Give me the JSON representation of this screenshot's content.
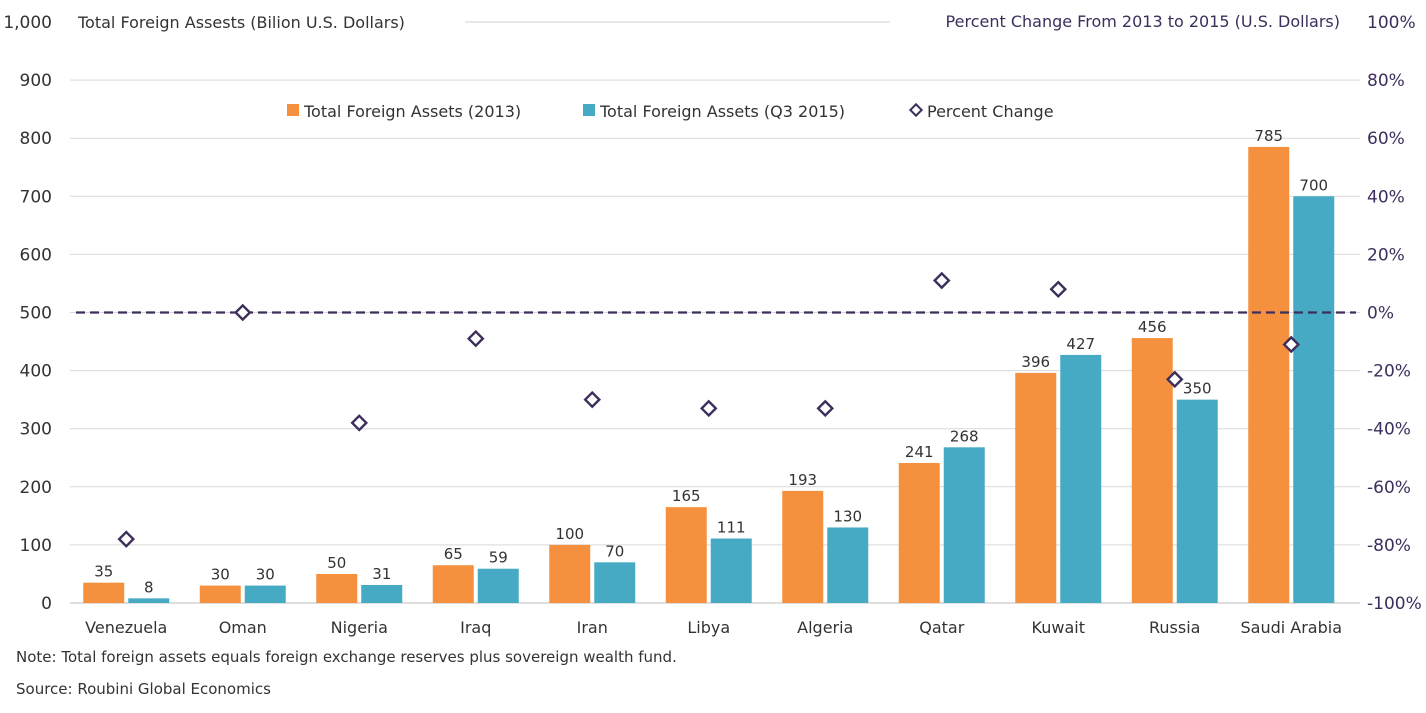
{
  "chart_data": {
    "type": "bar",
    "title_left": "Total Foreign Assests (Bilion U.S. Dollars)",
    "title_right": "Percent Change From 2013 to 2015 (U.S. Dollars)",
    "categories": [
      "Venezuela",
      "Oman",
      "Nigeria",
      "Iraq",
      "Iran",
      "Libya",
      "Algeria",
      "Qatar",
      "Kuwait",
      "Russia",
      "Saudi Arabia"
    ],
    "series": [
      {
        "name": "Total Foreign Assets (2013)",
        "color": "#f5913e",
        "values": [
          35,
          30,
          50,
          65,
          100,
          165,
          193,
          241,
          396,
          456,
          785
        ]
      },
      {
        "name": "Total Foreign Assets (Q3 2015)",
        "color": "#46aac5",
        "values": [
          8,
          30,
          31,
          59,
          70,
          111,
          130,
          268,
          427,
          350,
          700
        ]
      }
    ],
    "percent_change": {
      "name": "Percent Change",
      "color": "#3d2e5c",
      "values": [
        -78,
        0,
        -38,
        -9,
        -30,
        -33,
        -33,
        11,
        8,
        -23,
        -11
      ]
    },
    "ylim_left": [
      0,
      1000
    ],
    "yticks_left": [
      "0",
      "100",
      "200",
      "300",
      "400",
      "500",
      "600",
      "700",
      "800",
      "900",
      "1,000"
    ],
    "ylim_right": [
      -100,
      100
    ],
    "yticks_right": [
      "-100%",
      "-80%",
      "-60%",
      "-40%",
      "-20%",
      "0%",
      "20%",
      "40%",
      "60%",
      "80%",
      "100%"
    ],
    "reference_line_percent": 0,
    "legend_position": "top-center",
    "grid": true
  },
  "footnotes": {
    "note": "Note: Total foreign assets equals foreign exchange reserves plus sovereign wealth fund.",
    "source": "Source: Roubini Global Economics"
  }
}
